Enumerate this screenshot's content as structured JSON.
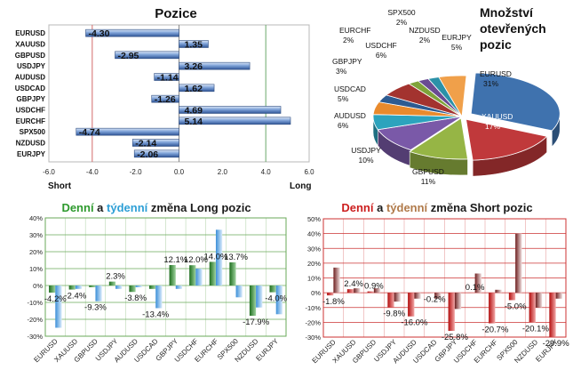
{
  "chart_data": [
    {
      "type": "bar",
      "orientation": "horizontal",
      "title": "Pozice",
      "categories": [
        "EURUSD",
        "XAUUSD",
        "GBPUSD",
        "USDJPY",
        "AUDUSD",
        "USDCAD",
        "GBPJPY",
        "USDCHF",
        "EURCHF",
        "SPX500",
        "NZDUSD",
        "EURJPY"
      ],
      "values": [
        -4.3,
        1.35,
        -2.95,
        3.26,
        -1.14,
        1.62,
        -1.26,
        4.69,
        5.14,
        -4.74,
        -2.14,
        -2.06
      ],
      "value_labels": [
        "-4.30",
        "1.35",
        "-2.95",
        "3.26",
        "-1.14",
        "1.62",
        "-1.26",
        "4.69",
        "5.14",
        "-4.74",
        "-2.14",
        "-2.06"
      ],
      "xlim": [
        -6,
        6
      ],
      "xticks": [
        "-6.0",
        "-4.0",
        "-2.0",
        "0.0",
        "2.0",
        "4.0",
        "6.0"
      ],
      "xtick_values": [
        -6,
        -4,
        -2,
        0,
        2,
        4,
        6
      ],
      "left_label": "Short",
      "right_label": "Long",
      "colors": {
        "bar": "#5b87c9",
        "bar_light": "#c9daf2",
        "bar_edge": "#2f4d80",
        "ref_low": "#d46a6a",
        "ref_high": "#6aa86a"
      }
    },
    {
      "type": "pie",
      "title_lines": [
        "Množství",
        "otevřených",
        "pozic"
      ],
      "slices": [
        {
          "name": "EURUSD",
          "value": 31,
          "label": "31%",
          "color": "#3f72ae"
        },
        {
          "name": "XAUUSD",
          "value": 17,
          "label": "17%",
          "color": "#c0393b"
        },
        {
          "name": "GBPUSD",
          "value": 11,
          "label": "11%",
          "color": "#96b545"
        },
        {
          "name": "USDJPY",
          "value": 10,
          "label": "10%",
          "color": "#7a59a8"
        },
        {
          "name": "AUDUSD",
          "value": 6,
          "label": "6%",
          "color": "#2ca3bd"
        },
        {
          "name": "USDCAD",
          "value": 5,
          "label": "5%",
          "color": "#e98a2c"
        },
        {
          "name": "GBPJPY",
          "value": 3,
          "label": "3%",
          "color": "#2d5b91"
        },
        {
          "name": "USDCHF",
          "value": 6,
          "label": "6%",
          "color": "#a3332f"
        },
        {
          "name": "EURCHF",
          "value": 2,
          "label": "2%",
          "color": "#7fa33a"
        },
        {
          "name": "SPX500",
          "value": 2,
          "label": "2%",
          "color": "#6a4b93"
        },
        {
          "name": "NZDUSD",
          "value": 2,
          "label": "2%",
          "color": "#2b91a8"
        },
        {
          "name": "EURJPY",
          "value": 5,
          "label": "5%",
          "color": "#f0a04a"
        }
      ]
    },
    {
      "type": "bar",
      "title_parts": [
        {
          "text": "Denní",
          "color": "#2e9a2e"
        },
        {
          "text": " a ",
          "color": "#1a1a1a"
        },
        {
          "text": "týdenní",
          "color": "#2d9fd6"
        },
        {
          "text": " změna Long pozic",
          "color": "#1a1a1a"
        }
      ],
      "categories": [
        "EURUSD",
        "XAUUSD",
        "GBPUSD",
        "USDJPY",
        "AUDUSD",
        "USDCAD",
        "GBPJPY",
        "USDCHF",
        "EURCHF",
        "SPX500",
        "NZDUSD",
        "EURJPY"
      ],
      "series": [
        {
          "name": "Denní",
          "values": [
            -4.2,
            -2.4,
            -1.0,
            2.3,
            -3.8,
            -2.0,
            12.1,
            12.0,
            14.0,
            13.7,
            -17.9,
            -4.0
          ],
          "color": "#2e8b2e"
        },
        {
          "name": "Týdenní",
          "values": [
            -25.0,
            -2.0,
            -9.3,
            -2.0,
            -1.0,
            -13.4,
            -2.0,
            10.0,
            33.0,
            -7.0,
            -13.0,
            -17.0
          ],
          "color": "#5ba6e8"
        }
      ],
      "data_labels": [
        {
          "category": "EURUSD",
          "value": -4.2,
          "text": "-4.2%"
        },
        {
          "category": "XAUUSD",
          "value": -2.4,
          "text": "-2.4%"
        },
        {
          "category": "GBPUSD",
          "value": -9.3,
          "text": "-9.3%"
        },
        {
          "category": "USDJPY",
          "value": 2.3,
          "text": "2.3%"
        },
        {
          "category": "AUDUSD",
          "value": -3.8,
          "text": "-3.8%"
        },
        {
          "category": "USDCAD",
          "value": -13.4,
          "text": "-13.4%"
        },
        {
          "category": "GBPJPY",
          "value": 12.1,
          "text": "12.1%"
        },
        {
          "category": "USDCHF",
          "value": 12.0,
          "text": "12.0%"
        },
        {
          "category": "EURCHF",
          "value": 14.0,
          "text": "14.0%"
        },
        {
          "category": "SPX500",
          "value": 13.7,
          "text": "13.7%"
        },
        {
          "category": "NZDUSD",
          "value": -17.9,
          "text": "-17.9%"
        },
        {
          "category": "EURJPY",
          "value": -4.0,
          "text": "-4.0%"
        }
      ],
      "ylim": [
        -30,
        40
      ],
      "yticks": [
        "-30%",
        "-20%",
        "-10%",
        "0%",
        "10%",
        "20%",
        "30%",
        "40%"
      ],
      "ytick_values": [
        -30,
        -20,
        -10,
        0,
        10,
        20,
        30,
        40
      ],
      "grid": true,
      "grid_color": "#6aaa5a"
    },
    {
      "type": "bar",
      "title_parts": [
        {
          "text": "Denní",
          "color": "#cc1f1f"
        },
        {
          "text": " a ",
          "color": "#1a1a1a"
        },
        {
          "text": "týdenní",
          "color": "#b07a4a"
        },
        {
          "text": " změna Short pozic",
          "color": "#1a1a1a"
        }
      ],
      "categories": [
        "EURUSD",
        "XAUUSD",
        "GBPUSD",
        "USDJPY",
        "AUDUSD",
        "USDCAD",
        "GBPJPY",
        "USDCHF",
        "EURCHF",
        "SPX500",
        "NZDUSD",
        "EURJPY"
      ],
      "series": [
        {
          "name": "Denní",
          "values": [
            -1.8,
            2.4,
            0.9,
            -9.8,
            -16.0,
            -0.2,
            -25.8,
            0.1,
            -20.7,
            -5.0,
            -20.1,
            -29.9
          ],
          "color": "#cc1111"
        },
        {
          "name": "Týdenní",
          "values": [
            17.0,
            3.0,
            3.0,
            -6.0,
            -4.0,
            -4.0,
            -11.0,
            13.0,
            2.0,
            40.0,
            -10.0,
            -4.0
          ],
          "color": "#8a2a2a"
        }
      ],
      "data_labels": [
        {
          "category": "EURUSD",
          "value": -1.8,
          "text": "-1.8%"
        },
        {
          "category": "XAUUSD",
          "value": 2.4,
          "text": "2.4%"
        },
        {
          "category": "GBPUSD",
          "value": 0.9,
          "text": "0.9%"
        },
        {
          "category": "USDJPY",
          "value": -9.8,
          "text": "-9.8%"
        },
        {
          "category": "AUDUSD",
          "value": -16.0,
          "text": "-16.0%"
        },
        {
          "category": "USDCAD",
          "value": -0.2,
          "text": "-0.2%"
        },
        {
          "category": "GBPJPY",
          "value": -25.8,
          "text": "-25.8%"
        },
        {
          "category": "USDCHF",
          "value": 0.1,
          "text": "0.1%"
        },
        {
          "category": "EURCHF",
          "value": -20.7,
          "text": "-20.7%"
        },
        {
          "category": "SPX500",
          "value": -5.0,
          "text": "-5.0%"
        },
        {
          "category": "NZDUSD",
          "value": -20.1,
          "text": "-20.1%"
        },
        {
          "category": "EURJPY",
          "value": -29.9,
          "text": "-29.9%"
        }
      ],
      "ylim": [
        -30,
        50
      ],
      "yticks": [
        "-30%",
        "-20%",
        "-10%",
        "0%",
        "10%",
        "20%",
        "30%",
        "40%",
        "50%"
      ],
      "ytick_values": [
        -30,
        -20,
        -10,
        0,
        10,
        20,
        30,
        40,
        50
      ],
      "grid": true,
      "grid_color": "#cc3333"
    }
  ]
}
